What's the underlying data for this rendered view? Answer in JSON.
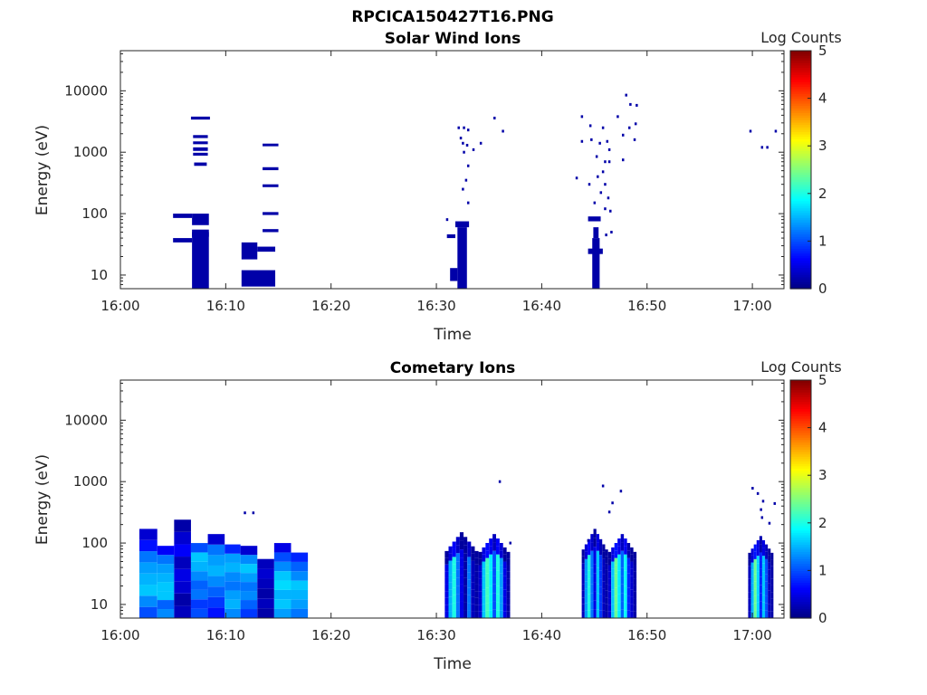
{
  "figure_title": "RPCICA150427T16.PNG",
  "chart_data": [
    {
      "type": "heatmap",
      "title": "Solar Wind Ions",
      "xlabel": "Time",
      "ylabel": "Energy (eV)",
      "yscale": "log",
      "ylim": [
        6,
        45000
      ],
      "xlim": [
        "16:00",
        "17:03"
      ],
      "xticks": [
        "16:00",
        "16:10",
        "16:20",
        "16:30",
        "16:40",
        "16:50",
        "17:00"
      ],
      "yticks": [
        "10",
        "100",
        "1000",
        "10000"
      ],
      "colorbar": {
        "label": "Log Counts",
        "range": [
          0,
          5
        ],
        "ticks": [
          "0",
          "1",
          "2",
          "3",
          "4",
          "5"
        ],
        "colormap": "jet"
      },
      "cells": [
        {
          "t0": 6.8,
          "t1": 8.4,
          "e0": 6,
          "e1": 55,
          "v": 0.2
        },
        {
          "t0": 6.8,
          "t1": 8.4,
          "e0": 65,
          "e1": 100,
          "v": 0.2
        },
        {
          "t0": 5.0,
          "t1": 6.8,
          "e0": 85,
          "e1": 100,
          "v": 0.2
        },
        {
          "t0": 5.0,
          "t1": 6.8,
          "e0": 34,
          "e1": 40,
          "v": 0.2
        },
        {
          "t0": 6.8,
          "t1": 8.4,
          "e0": 42,
          "e1": 50,
          "v": 0.2
        },
        {
          "t0": 6.7,
          "t1": 8.5,
          "e0": 3400,
          "e1": 3800,
          "v": 0.2
        },
        {
          "t0": 6.9,
          "t1": 8.3,
          "e0": 1700,
          "e1": 1900,
          "v": 0.2
        },
        {
          "t0": 6.9,
          "t1": 8.3,
          "e0": 1350,
          "e1": 1500,
          "v": 0.2
        },
        {
          "t0": 6.9,
          "t1": 8.3,
          "e0": 1050,
          "e1": 1200,
          "v": 0.2
        },
        {
          "t0": 6.9,
          "t1": 8.3,
          "e0": 880,
          "e1": 980,
          "v": 0.2
        },
        {
          "t0": 7.0,
          "t1": 8.2,
          "e0": 600,
          "e1": 680,
          "v": 0.2
        },
        {
          "t0": 11.5,
          "t1": 13.0,
          "e0": 18,
          "e1": 34,
          "v": 0.2
        },
        {
          "t0": 13.0,
          "t1": 14.7,
          "e0": 24,
          "e1": 29,
          "v": 0.2
        },
        {
          "t0": 11.5,
          "t1": 14.7,
          "e0": 6.5,
          "e1": 12,
          "v": 0.2
        },
        {
          "t0": 13.5,
          "t1": 15.0,
          "e0": 1250,
          "e1": 1380,
          "v": 0.2
        },
        {
          "t0": 13.5,
          "t1": 15.0,
          "e0": 510,
          "e1": 570,
          "v": 0.2
        },
        {
          "t0": 13.5,
          "t1": 15.0,
          "e0": 270,
          "e1": 300,
          "v": 0.2
        },
        {
          "t0": 13.5,
          "t1": 15.0,
          "e0": 95,
          "e1": 106,
          "v": 0.2
        },
        {
          "t0": 13.5,
          "t1": 15.0,
          "e0": 50,
          "e1": 56,
          "v": 0.2
        },
        {
          "t0": 32.0,
          "t1": 32.9,
          "e0": 6,
          "e1": 60,
          "v": 0.2
        },
        {
          "t0": 31.3,
          "t1": 32.0,
          "e0": 8,
          "e1": 13,
          "v": 0.2
        },
        {
          "t0": 31.8,
          "t1": 33.1,
          "e0": 60,
          "e1": 75,
          "v": 0.2
        },
        {
          "t0": 31.0,
          "t1": 31.8,
          "e0": 40,
          "e1": 46,
          "v": 0.2
        },
        {
          "t0": 44.8,
          "t1": 45.5,
          "e0": 6,
          "e1": 40,
          "v": 0.2
        },
        {
          "t0": 44.4,
          "t1": 45.8,
          "e0": 22,
          "e1": 27,
          "v": 0.2
        },
        {
          "t0": 44.4,
          "t1": 45.6,
          "e0": 75,
          "e1": 90,
          "v": 0.2
        },
        {
          "t0": 44.9,
          "t1": 45.4,
          "e0": 40,
          "e1": 60,
          "v": 0.2
        }
      ],
      "points": [
        {
          "t": 32.1,
          "e": 2500,
          "v": 0.2
        },
        {
          "t": 32.6,
          "e": 2500,
          "v": 0.2
        },
        {
          "t": 33.0,
          "e": 2300,
          "v": 0.2
        },
        {
          "t": 32.3,
          "e": 1700,
          "v": 0.2
        },
        {
          "t": 32.5,
          "e": 1400,
          "v": 0.2
        },
        {
          "t": 32.9,
          "e": 1300,
          "v": 0.2
        },
        {
          "t": 33.5,
          "e": 1100,
          "v": 0.2
        },
        {
          "t": 32.6,
          "e": 1000,
          "v": 0.2
        },
        {
          "t": 33.0,
          "e": 600,
          "v": 0.2
        },
        {
          "t": 32.8,
          "e": 350,
          "v": 0.2
        },
        {
          "t": 32.5,
          "e": 250,
          "v": 0.2
        },
        {
          "t": 33.0,
          "e": 150,
          "v": 0.2
        },
        {
          "t": 31.0,
          "e": 80,
          "v": 0.2
        },
        {
          "t": 34.2,
          "e": 1400,
          "v": 0.2
        },
        {
          "t": 35.5,
          "e": 3600,
          "v": 0.2
        },
        {
          "t": 36.3,
          "e": 2200,
          "v": 0.2
        },
        {
          "t": 43.8,
          "e": 3800,
          "v": 0.2
        },
        {
          "t": 44.6,
          "e": 2700,
          "v": 0.2
        },
        {
          "t": 45.8,
          "e": 2500,
          "v": 0.2
        },
        {
          "t": 47.2,
          "e": 3800,
          "v": 0.2
        },
        {
          "t": 48.0,
          "e": 8500,
          "v": 0.2
        },
        {
          "t": 48.4,
          "e": 6000,
          "v": 0.2
        },
        {
          "t": 49.0,
          "e": 5800,
          "v": 0.2
        },
        {
          "t": 48.9,
          "e": 2900,
          "v": 0.2
        },
        {
          "t": 48.3,
          "e": 2500,
          "v": 0.2
        },
        {
          "t": 47.7,
          "e": 1900,
          "v": 0.2
        },
        {
          "t": 48.8,
          "e": 1600,
          "v": 0.2
        },
        {
          "t": 43.8,
          "e": 1500,
          "v": 0.2
        },
        {
          "t": 44.7,
          "e": 1600,
          "v": 0.2
        },
        {
          "t": 45.5,
          "e": 1400,
          "v": 0.2
        },
        {
          "t": 46.2,
          "e": 1500,
          "v": 0.2
        },
        {
          "t": 46.4,
          "e": 1100,
          "v": 0.2
        },
        {
          "t": 45.2,
          "e": 850,
          "v": 0.2
        },
        {
          "t": 46.0,
          "e": 700,
          "v": 0.2
        },
        {
          "t": 46.4,
          "e": 700,
          "v": 0.2
        },
        {
          "t": 47.7,
          "e": 750,
          "v": 0.2
        },
        {
          "t": 45.8,
          "e": 480,
          "v": 0.2
        },
        {
          "t": 45.3,
          "e": 400,
          "v": 0.2
        },
        {
          "t": 44.5,
          "e": 300,
          "v": 0.2
        },
        {
          "t": 46.0,
          "e": 300,
          "v": 0.2
        },
        {
          "t": 43.3,
          "e": 380,
          "v": 0.2
        },
        {
          "t": 45.6,
          "e": 220,
          "v": 0.2
        },
        {
          "t": 46.3,
          "e": 180,
          "v": 0.2
        },
        {
          "t": 45.0,
          "e": 150,
          "v": 0.2
        },
        {
          "t": 46.0,
          "e": 120,
          "v": 0.2
        },
        {
          "t": 46.5,
          "e": 110,
          "v": 0.2
        },
        {
          "t": 46.6,
          "e": 50,
          "v": 0.2
        },
        {
          "t": 46.1,
          "e": 45,
          "v": 0.2
        },
        {
          "t": 59.8,
          "e": 2200,
          "v": 0.2
        },
        {
          "t": 60.9,
          "e": 1200,
          "v": 0.2
        },
        {
          "t": 61.4,
          "e": 1200,
          "v": 0.2
        },
        {
          "t": 62.2,
          "e": 2200,
          "v": 0.2
        }
      ]
    },
    {
      "type": "heatmap",
      "title": "Cometary Ions",
      "xlabel": "Time",
      "ylabel": "Energy (eV)",
      "yscale": "log",
      "ylim": [
        6,
        45000
      ],
      "xlim": [
        "16:00",
        "17:03"
      ],
      "xticks": [
        "16:00",
        "16:10",
        "16:20",
        "16:30",
        "16:40",
        "16:50",
        "17:00"
      ],
      "yticks": [
        "10",
        "100",
        "1000",
        "10000"
      ],
      "colorbar": {
        "label": "Log Counts",
        "range": [
          0,
          5
        ],
        "ticks": [
          "0",
          "1",
          "2",
          "3",
          "4",
          "5"
        ],
        "colormap": "jet"
      },
      "columns": [
        {
          "t0": 1.8,
          "t1": 3.5,
          "top": 170,
          "values": [
            1.0,
            1.3,
            1.6,
            1.5,
            1.4,
            1.2,
            0.7,
            0.4
          ]
        },
        {
          "t0": 3.5,
          "t1": 5.1,
          "top": 90,
          "values": [
            1.3,
            1.1,
            1.6,
            1.6,
            1.5,
            1.4,
            1.2,
            0.6
          ]
        },
        {
          "t0": 5.1,
          "t1": 6.7,
          "top": 240,
          "values": [
            0.3,
            0.2,
            0.4,
            0.5,
            0.3,
            0.6,
            0.4,
            0.2
          ]
        },
        {
          "t0": 6.7,
          "t1": 8.3,
          "top": 100,
          "values": [
            1.0,
            0.9,
            1.2,
            1.1,
            1.3,
            1.5,
            1.6,
            1.0
          ]
        },
        {
          "t0": 8.3,
          "t1": 9.9,
          "top": 140,
          "values": [
            0.7,
            0.9,
            1.1,
            1.3,
            1.5,
            1.4,
            1.2,
            0.4
          ]
        },
        {
          "t0": 9.9,
          "t1": 11.4,
          "top": 95,
          "values": [
            1.3,
            1.5,
            1.4,
            1.2,
            1.3,
            1.5,
            1.4,
            0.8
          ]
        },
        {
          "t0": 11.4,
          "t1": 13.0,
          "top": 90,
          "values": [
            0.9,
            1.1,
            1.3,
            1.2,
            1.4,
            1.6,
            1.3,
            0.4
          ]
        },
        {
          "t0": 13.0,
          "t1": 14.6,
          "top": 55,
          "values": [
            0.2,
            0.3,
            0.2,
            0.3,
            0.4,
            0.3
          ]
        },
        {
          "t0": 14.6,
          "t1": 16.2,
          "top": 100,
          "values": [
            1.4,
            1.6,
            1.5,
            1.7,
            1.6,
            1.3,
            1.0,
            0.5
          ]
        },
        {
          "t0": 16.2,
          "t1": 17.8,
          "top": 70,
          "values": [
            1.2,
            1.4,
            1.5,
            1.6,
            1.3,
            1.1,
            0.8
          ]
        }
      ],
      "bursts": [
        {
          "t0": 30.8,
          "t1": 34.0,
          "top": 150,
          "values": [
            0.5,
            1.5,
            2.0,
            1.2,
            0.5,
            0.2,
            1.2,
            0.3,
            0.2
          ]
        },
        {
          "t0": 34.0,
          "t1": 37.0,
          "top": 140,
          "values": [
            0.4,
            1.6,
            2.2,
            1.8,
            1.0,
            2.0,
            1.4,
            0.5,
            0.2
          ]
        },
        {
          "t0": 43.8,
          "t1": 46.3,
          "top": 170,
          "values": [
            0.3,
            1.4,
            2.0,
            1.2,
            0.5,
            1.6,
            0.9,
            0.3,
            0.2
          ]
        },
        {
          "t0": 46.3,
          "t1": 49.0,
          "top": 140,
          "values": [
            0.4,
            1.6,
            2.4,
            1.8,
            1.1,
            1.9,
            0.8,
            0.4,
            0.2
          ]
        },
        {
          "t0": 59.6,
          "t1": 62.0,
          "top": 130,
          "values": [
            0.3,
            1.5,
            2.4,
            1.7,
            0.8,
            1.6,
            1.0,
            0.3,
            0.2
          ]
        }
      ],
      "points": [
        {
          "t": 36.0,
          "e": 1000,
          "v": 0.2
        },
        {
          "t": 45.8,
          "e": 850,
          "v": 0.2
        },
        {
          "t": 47.5,
          "e": 700,
          "v": 0.2
        },
        {
          "t": 46.7,
          "e": 450,
          "v": 0.2
        },
        {
          "t": 46.4,
          "e": 320,
          "v": 0.2
        },
        {
          "t": 11.8,
          "e": 310,
          "v": 0.2
        },
        {
          "t": 12.6,
          "e": 310,
          "v": 0.2
        },
        {
          "t": 60.0,
          "e": 780,
          "v": 0.2
        },
        {
          "t": 60.5,
          "e": 640,
          "v": 0.2
        },
        {
          "t": 61.0,
          "e": 480,
          "v": 0.2
        },
        {
          "t": 62.1,
          "e": 440,
          "v": 0.2
        },
        {
          "t": 60.8,
          "e": 350,
          "v": 0.2
        },
        {
          "t": 60.9,
          "e": 260,
          "v": 0.2
        },
        {
          "t": 61.6,
          "e": 210,
          "v": 0.2
        },
        {
          "t": 37.0,
          "e": 100,
          "v": 0.2
        },
        {
          "t": 44.4,
          "e": 110,
          "v": 0.2
        }
      ]
    }
  ]
}
